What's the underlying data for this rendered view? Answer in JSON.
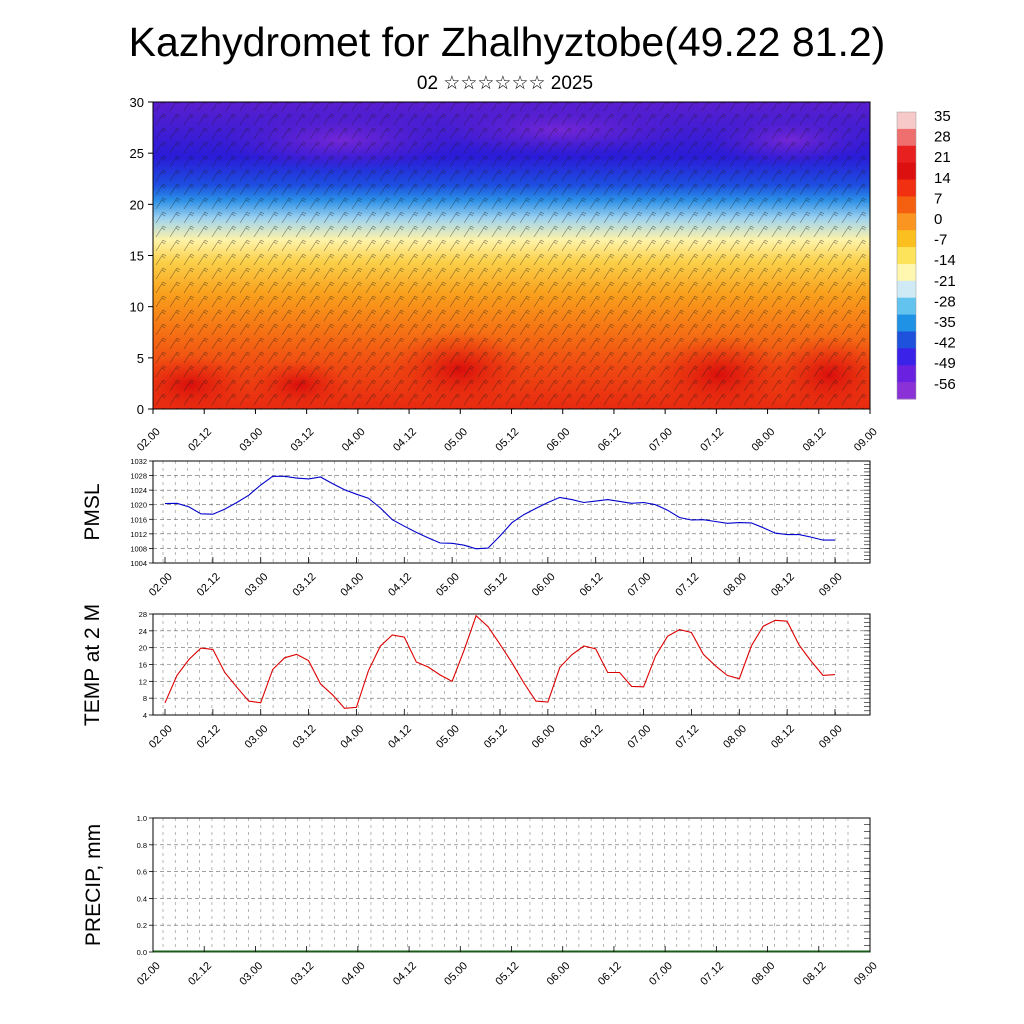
{
  "title": "Kazhydromet for Zhalhyztobe(49.22 81.2)",
  "subtitle": "02 ☆☆☆☆☆☆ 2025",
  "x_ticks": [
    "02.00",
    "02.12",
    "03.00",
    "03.12",
    "04.00",
    "04.12",
    "05.00",
    "05.12",
    "06.00",
    "06.12",
    "07.00",
    "07.12",
    "08.00",
    "08.12",
    "09.00"
  ],
  "colorbar": {
    "labels": [
      "35",
      "28",
      "21",
      "14",
      "7",
      "0",
      "-7",
      "-14",
      "-21",
      "-28",
      "-35",
      "-42",
      "-49",
      "-56"
    ],
    "colors": [
      "#f7c9c9",
      "#ef6f6f",
      "#e8201f",
      "#dd1010",
      "#f03010",
      "#f56010",
      "#f99520",
      "#fbc020",
      "#fde35a",
      "#fff6b0",
      "#cfeaf5",
      "#62c4ee",
      "#1f92e6",
      "#1e52dd",
      "#3a22e8",
      "#6a22e0",
      "#8a32d8"
    ]
  },
  "chart_data": [
    {
      "type": "heatmap",
      "title": "Kazhydromet for Zhalhyztobe(49.22 81.2)",
      "ylim": [
        0,
        30
      ],
      "yticks": [
        "0",
        "5",
        "10",
        "15",
        "20",
        "25",
        "30"
      ],
      "x": [
        "02.00",
        "02.12",
        "03.00",
        "03.12",
        "04.00",
        "04.12",
        "05.00",
        "05.12",
        "06.00",
        "06.12",
        "07.00",
        "07.12",
        "08.00",
        "08.12",
        "09.00"
      ],
      "value_range": [
        -56,
        35
      ],
      "description_colors": "temperature cross-section with wind barbs"
    },
    {
      "type": "line",
      "ylabel": "PMSL",
      "ylim": [
        1004,
        1032
      ],
      "yticks": [
        "1004",
        "1008",
        "1012",
        "1016",
        "1020",
        "1024",
        "1028",
        "1032"
      ],
      "color": "#0000cc",
      "x": [
        "02.00",
        "02.03",
        "02.06",
        "02.09",
        "02.12",
        "02.15",
        "02.18",
        "02.21",
        "03.00",
        "03.03",
        "03.06",
        "03.09",
        "03.12",
        "03.15",
        "03.18",
        "03.21",
        "04.00",
        "04.03",
        "04.06",
        "04.09",
        "04.12",
        "04.15",
        "04.18",
        "04.21",
        "05.00",
        "05.03",
        "05.06",
        "05.09",
        "05.12",
        "05.15",
        "05.18",
        "05.21",
        "06.00",
        "06.03",
        "06.06",
        "06.09",
        "06.12",
        "06.15",
        "06.18",
        "06.21",
        "07.00",
        "07.03",
        "07.06",
        "07.09",
        "07.12",
        "07.15",
        "07.18",
        "07.21",
        "08.00",
        "08.03",
        "08.06",
        "08.09",
        "08.12",
        "08.15",
        "08.18",
        "08.21",
        "09.00"
      ],
      "values": [
        1020.3,
        1020.4,
        1019.4,
        1017.5,
        1017.4,
        1018.8,
        1020.6,
        1022.6,
        1025.4,
        1027.8,
        1027.8,
        1027.3,
        1027.1,
        1027.6,
        1025.8,
        1024.1,
        1022.9,
        1021.8,
        1019.1,
        1015.9,
        1014.1,
        1012.4,
        1010.9,
        1009.5,
        1009.4,
        1008.9,
        1007.9,
        1008.1,
        1011.4,
        1015.1,
        1017.3,
        1019.0,
        1020.6,
        1022.0,
        1021.4,
        1020.6,
        1021.0,
        1021.4,
        1020.9,
        1020.4,
        1020.6,
        1020.0,
        1018.5,
        1016.5,
        1015.8,
        1015.9,
        1015.4,
        1014.9,
        1015.1,
        1015.0,
        1013.7,
        1012.2,
        1011.8,
        1011.8,
        1011.1,
        1010.3,
        1010.3
      ]
    },
    {
      "type": "line",
      "ylabel": "TEMP at 2 M",
      "ylim": [
        4,
        28
      ],
      "yticks": [
        "4",
        "8",
        "12",
        "16",
        "20",
        "24",
        "28"
      ],
      "color": "#dd0000",
      "x": [
        "02.00",
        "02.03",
        "02.06",
        "02.09",
        "02.12",
        "02.15",
        "02.18",
        "02.21",
        "03.00",
        "03.03",
        "03.06",
        "03.09",
        "03.12",
        "03.15",
        "03.18",
        "03.21",
        "04.00",
        "04.03",
        "04.06",
        "04.09",
        "04.12",
        "04.15",
        "04.18",
        "04.21",
        "05.00",
        "05.03",
        "05.06",
        "05.09",
        "05.12",
        "05.15",
        "05.18",
        "05.21",
        "06.00",
        "06.03",
        "06.06",
        "06.09",
        "06.12",
        "06.15",
        "06.18",
        "06.21",
        "07.00",
        "07.03",
        "07.06",
        "07.09",
        "07.12",
        "07.15",
        "07.18",
        "07.21",
        "08.00",
        "08.03",
        "08.06",
        "08.09",
        "08.12",
        "08.15",
        "08.18",
        "08.21",
        "09.00"
      ],
      "values": [
        6.9,
        13.4,
        17.2,
        19.9,
        19.6,
        14.1,
        10.6,
        7.3,
        6.9,
        14.8,
        17.6,
        18.4,
        16.9,
        11.4,
        8.8,
        5.6,
        5.8,
        14.5,
        20.4,
        23.0,
        22.5,
        16.6,
        15.4,
        13.5,
        12.0,
        19.4,
        27.6,
        25.0,
        20.8,
        16.4,
        11.6,
        7.3,
        7.1,
        15.3,
        18.3,
        20.4,
        19.7,
        14.1,
        14.1,
        10.8,
        10.7,
        18.0,
        22.7,
        24.3,
        23.6,
        18.4,
        15.7,
        13.4,
        12.6,
        20.4,
        25.1,
        26.5,
        26.3,
        20.6,
        16.8,
        13.4,
        13.6
      ]
    },
    {
      "type": "bar",
      "ylabel": "PRECIP, mm",
      "ylim": [
        0,
        1
      ],
      "yticks": [
        "0.0",
        "0.2",
        "0.4",
        "0.6",
        "0.8",
        "1.0"
      ],
      "x": [
        "02.00",
        "02.12",
        "03.00",
        "03.12",
        "04.00",
        "04.12",
        "05.00",
        "05.12",
        "06.00",
        "06.12",
        "07.00",
        "07.12",
        "08.00",
        "08.12",
        "09.00"
      ],
      "values": [
        0,
        0,
        0,
        0,
        0,
        0,
        0,
        0,
        0,
        0,
        0,
        0,
        0,
        0,
        0
      ]
    }
  ]
}
